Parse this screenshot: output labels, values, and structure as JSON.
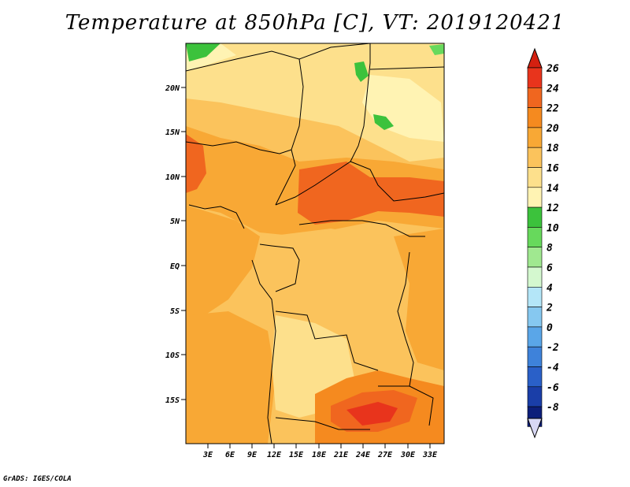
{
  "title": "Temperature at 850hPa [C], VT: 2019120421",
  "credit": "GrADS: IGES/COLA",
  "map": {
    "variable": "Temperature at 850hPa",
    "units": "C",
    "valid_time": "2019120421",
    "lat_labels": [
      "20N",
      "15N",
      "10N",
      "5N",
      "EQ",
      "5S",
      "10S",
      "15S"
    ],
    "lon_labels": [
      "3E",
      "6E",
      "9E",
      "12E",
      "15E",
      "18E",
      "21E",
      "24E",
      "27E",
      "30E",
      "33E"
    ]
  },
  "colorbar": {
    "labels": [
      "26",
      "24",
      "22",
      "20",
      "18",
      "16",
      "14",
      "12",
      "10",
      "8",
      "6",
      "4",
      "2",
      "0",
      "-2",
      "-4",
      "-6",
      "-8"
    ],
    "colors": [
      "#e8341c",
      "#f0661f",
      "#f58a1f",
      "#f8a835",
      "#fbc35c",
      "#fde08c",
      "#fff3b3",
      "#3cc23c",
      "#67d95c",
      "#a0e890",
      "#d4f8cf",
      "#b4e6f8",
      "#86c8f0",
      "#5aa6e8",
      "#3e82da",
      "#2a60c8",
      "#1a3ea8",
      "#0c1e7a"
    ],
    "top_color": "#d42010",
    "bottom_color": "#d8d8f4"
  }
}
